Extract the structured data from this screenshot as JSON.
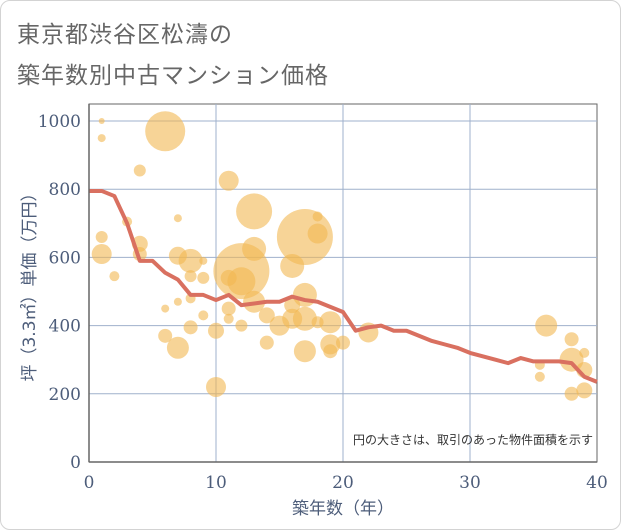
{
  "title_line1": "東京都渋谷区松濤の",
  "title_line2": "築年数別中古マンション価格",
  "chart_data": {
    "type": "scatter",
    "xlabel": "築年数（年）",
    "ylabel": "坪（3.3㎡）単価（万円）",
    "note": "円の大きさは、取引のあった物件面積を示す",
    "xlim": [
      0,
      40
    ],
    "ylim": [
      0,
      1050
    ],
    "xticks": [
      0,
      10,
      20,
      30,
      40
    ],
    "yticks": [
      0,
      200,
      400,
      600,
      800,
      1000
    ],
    "grid": true,
    "colors": {
      "bubble": "#f1b752",
      "line": "#d97060",
      "axis": "#666666",
      "grid": "#9fb1cc",
      "text": "#4d5d7a"
    },
    "bubbles": [
      {
        "x": 1,
        "y": 1000,
        "s": 3
      },
      {
        "x": 1,
        "y": 950,
        "s": 4
      },
      {
        "x": 1,
        "y": 660,
        "s": 6
      },
      {
        "x": 1,
        "y": 610,
        "s": 10
      },
      {
        "x": 2,
        "y": 545,
        "s": 5
      },
      {
        "x": 3,
        "y": 705,
        "s": 5
      },
      {
        "x": 4,
        "y": 855,
        "s": 6
      },
      {
        "x": 4,
        "y": 640,
        "s": 8
      },
      {
        "x": 4,
        "y": 610,
        "s": 7
      },
      {
        "x": 6,
        "y": 970,
        "s": 20
      },
      {
        "x": 6,
        "y": 450,
        "s": 4
      },
      {
        "x": 6,
        "y": 370,
        "s": 7
      },
      {
        "x": 7,
        "y": 715,
        "s": 4
      },
      {
        "x": 7,
        "y": 605,
        "s": 9
      },
      {
        "x": 7,
        "y": 470,
        "s": 4
      },
      {
        "x": 7,
        "y": 335,
        "s": 11
      },
      {
        "x": 8,
        "y": 590,
        "s": 12
      },
      {
        "x": 8,
        "y": 545,
        "s": 6
      },
      {
        "x": 8,
        "y": 480,
        "s": 5
      },
      {
        "x": 8,
        "y": 395,
        "s": 7
      },
      {
        "x": 9,
        "y": 590,
        "s": 4
      },
      {
        "x": 9,
        "y": 540,
        "s": 6
      },
      {
        "x": 9,
        "y": 430,
        "s": 5
      },
      {
        "x": 10,
        "y": 385,
        "s": 8
      },
      {
        "x": 10,
        "y": 220,
        "s": 10
      },
      {
        "x": 11,
        "y": 825,
        "s": 10
      },
      {
        "x": 11,
        "y": 540,
        "s": 8
      },
      {
        "x": 11,
        "y": 450,
        "s": 7
      },
      {
        "x": 11,
        "y": 420,
        "s": 5
      },
      {
        "x": 12,
        "y": 560,
        "s": 28
      },
      {
        "x": 12,
        "y": 530,
        "s": 14
      },
      {
        "x": 12,
        "y": 400,
        "s": 6
      },
      {
        "x": 13,
        "y": 735,
        "s": 18
      },
      {
        "x": 13,
        "y": 625,
        "s": 12
      },
      {
        "x": 13,
        "y": 470,
        "s": 11
      },
      {
        "x": 14,
        "y": 430,
        "s": 8
      },
      {
        "x": 14,
        "y": 350,
        "s": 7
      },
      {
        "x": 15,
        "y": 400,
        "s": 10
      },
      {
        "x": 16,
        "y": 575,
        "s": 12
      },
      {
        "x": 16,
        "y": 420,
        "s": 10
      },
      {
        "x": 16,
        "y": 460,
        "s": 8
      },
      {
        "x": 17,
        "y": 660,
        "s": 28
      },
      {
        "x": 17,
        "y": 490,
        "s": 12
      },
      {
        "x": 17,
        "y": 420,
        "s": 12
      },
      {
        "x": 17,
        "y": 325,
        "s": 11
      },
      {
        "x": 18,
        "y": 720,
        "s": 5
      },
      {
        "x": 18,
        "y": 670,
        "s": 10
      },
      {
        "x": 18,
        "y": 410,
        "s": 6
      },
      {
        "x": 19,
        "y": 410,
        "s": 11
      },
      {
        "x": 19,
        "y": 345,
        "s": 10
      },
      {
        "x": 19,
        "y": 325,
        "s": 7
      },
      {
        "x": 20,
        "y": 350,
        "s": 7
      },
      {
        "x": 22,
        "y": 380,
        "s": 10
      },
      {
        "x": 36,
        "y": 400,
        "s": 11
      },
      {
        "x": 35.5,
        "y": 285,
        "s": 5
      },
      {
        "x": 35.5,
        "y": 250,
        "s": 5
      },
      {
        "x": 38,
        "y": 360,
        "s": 7
      },
      {
        "x": 38,
        "y": 300,
        "s": 12
      },
      {
        "x": 38,
        "y": 200,
        "s": 7
      },
      {
        "x": 39,
        "y": 320,
        "s": 5
      },
      {
        "x": 39,
        "y": 270,
        "s": 8
      },
      {
        "x": 39,
        "y": 210,
        "s": 8
      }
    ],
    "line": {
      "x": [
        0,
        1,
        2,
        3,
        4,
        5,
        6,
        7,
        8,
        9,
        10,
        11,
        12,
        13,
        14,
        15,
        16,
        17,
        18,
        19,
        20,
        21,
        22,
        23,
        24,
        25,
        26,
        27,
        28,
        29,
        30,
        31,
        32,
        33,
        34,
        35,
        36,
        37,
        38,
        39,
        40
      ],
      "y": [
        795,
        795,
        780,
        700,
        590,
        590,
        555,
        535,
        490,
        490,
        475,
        490,
        460,
        465,
        470,
        470,
        485,
        475,
        470,
        455,
        440,
        385,
        395,
        400,
        385,
        385,
        370,
        355,
        345,
        335,
        320,
        310,
        300,
        290,
        305,
        295,
        295,
        295,
        290,
        250,
        235
      ]
    }
  }
}
